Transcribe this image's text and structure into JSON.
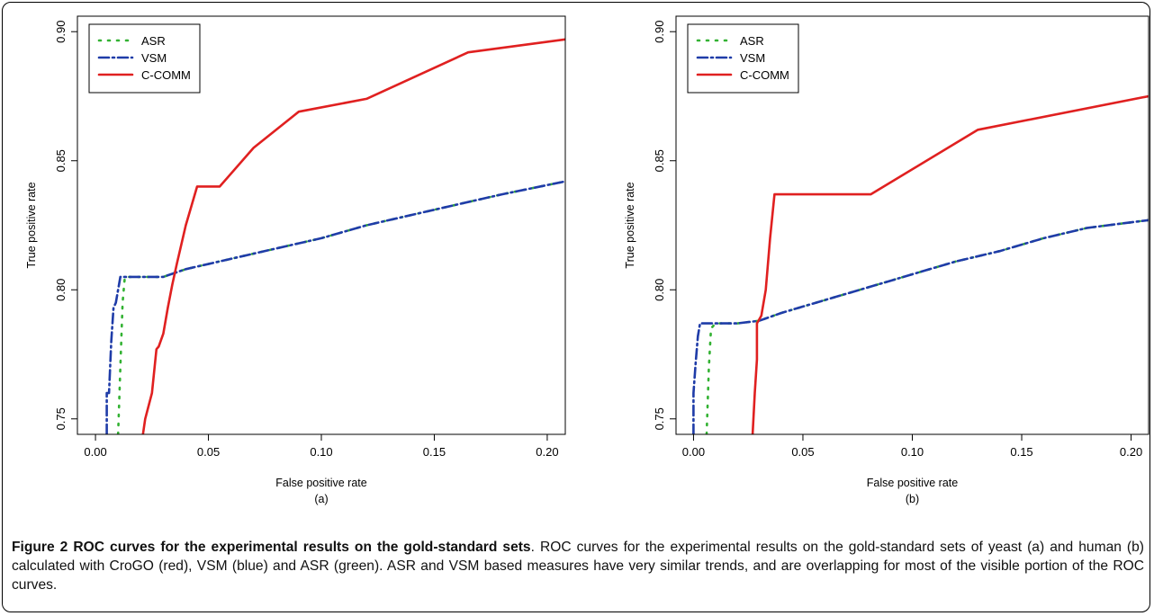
{
  "chart_data": [
    {
      "type": "line",
      "panel_label": "(a)",
      "xlabel": "False positive rate",
      "ylabel": "True positive rate",
      "xlim": [
        -0.008,
        0.208
      ],
      "ylim": [
        0.744,
        0.906
      ],
      "xticks": [
        "0.00",
        "0.05",
        "0.10",
        "0.15",
        "0.20"
      ],
      "yticks": [
        "0.75",
        "0.80",
        "0.85",
        "0.90"
      ],
      "legend_position": "top-left",
      "series": [
        {
          "name": "ASR",
          "color": "#33b233",
          "dash": "2,8",
          "x": [
            0.01,
            0.011,
            0.012,
            0.013,
            0.02,
            0.03,
            0.04,
            0.06,
            0.08,
            0.1,
            0.12,
            0.14,
            0.16,
            0.18,
            0.208
          ],
          "y": [
            0.744,
            0.77,
            0.795,
            0.805,
            0.805,
            0.805,
            0.808,
            0.812,
            0.816,
            0.82,
            0.825,
            0.829,
            0.833,
            0.837,
            0.842
          ]
        },
        {
          "name": "VSM",
          "color": "#1f3ca8",
          "dash": "11,4,2,4",
          "x": [
            0.005,
            0.005,
            0.006,
            0.007,
            0.008,
            0.009,
            0.01,
            0.011,
            0.02,
            0.03,
            0.04,
            0.06,
            0.08,
            0.1,
            0.12,
            0.14,
            0.16,
            0.18,
            0.208
          ],
          "y": [
            0.744,
            0.76,
            0.76,
            0.78,
            0.793,
            0.795,
            0.8,
            0.805,
            0.805,
            0.805,
            0.808,
            0.812,
            0.816,
            0.82,
            0.825,
            0.829,
            0.833,
            0.837,
            0.842
          ]
        },
        {
          "name": "C-COMM",
          "color": "#e02020",
          "dash": "",
          "x": [
            0.021,
            0.022,
            0.025,
            0.027,
            0.028,
            0.03,
            0.032,
            0.034,
            0.036,
            0.04,
            0.045,
            0.055,
            0.07,
            0.09,
            0.12,
            0.165,
            0.208
          ],
          "y": [
            0.744,
            0.75,
            0.76,
            0.777,
            0.778,
            0.783,
            0.793,
            0.802,
            0.81,
            0.825,
            0.84,
            0.84,
            0.855,
            0.869,
            0.874,
            0.892,
            0.897
          ]
        }
      ]
    },
    {
      "type": "line",
      "panel_label": "(b)",
      "xlabel": "False positive rate",
      "ylabel": "True positive rate",
      "xlim": [
        -0.008,
        0.208
      ],
      "ylim": [
        0.744,
        0.906
      ],
      "xticks": [
        "0.00",
        "0.05",
        "0.10",
        "0.15",
        "0.20"
      ],
      "yticks": [
        "0.75",
        "0.80",
        "0.85",
        "0.90"
      ],
      "legend_position": "top-left",
      "series": [
        {
          "name": "ASR",
          "color": "#33b233",
          "dash": "2,8",
          "x": [
            0.006,
            0.007,
            0.008,
            0.01,
            0.02,
            0.03,
            0.04,
            0.06,
            0.08,
            0.1,
            0.12,
            0.14,
            0.16,
            0.18,
            0.208
          ],
          "y": [
            0.744,
            0.77,
            0.785,
            0.787,
            0.787,
            0.788,
            0.791,
            0.796,
            0.801,
            0.806,
            0.811,
            0.815,
            0.82,
            0.824,
            0.827
          ]
        },
        {
          "name": "VSM",
          "color": "#1f3ca8",
          "dash": "11,4,2,4",
          "x": [
            0.0,
            0.0,
            0.001,
            0.002,
            0.003,
            0.01,
            0.02,
            0.03,
            0.04,
            0.06,
            0.08,
            0.1,
            0.12,
            0.14,
            0.16,
            0.18,
            0.208
          ],
          "y": [
            0.744,
            0.76,
            0.772,
            0.782,
            0.787,
            0.787,
            0.787,
            0.788,
            0.791,
            0.796,
            0.801,
            0.806,
            0.811,
            0.815,
            0.82,
            0.824,
            0.827
          ]
        },
        {
          "name": "C-COMM",
          "color": "#e02020",
          "dash": "",
          "x": [
            0.027,
            0.028,
            0.029,
            0.029,
            0.031,
            0.033,
            0.035,
            0.037,
            0.081,
            0.13,
            0.208
          ],
          "y": [
            0.744,
            0.76,
            0.773,
            0.787,
            0.79,
            0.8,
            0.82,
            0.837,
            0.837,
            0.862,
            0.875
          ]
        }
      ]
    }
  ],
  "caption": {
    "title": "Figure 2 ROC curves for the experimental results on the gold-standard sets",
    "text": ". ROC curves for the experimental results on the gold-standard sets of yeast (a) and human (b) calculated with CroGO (red), VSM (blue) and ASR (green). ASR and VSM based measures have very similar trends, and are overlapping for most of the visible portion of the ROC curves."
  }
}
